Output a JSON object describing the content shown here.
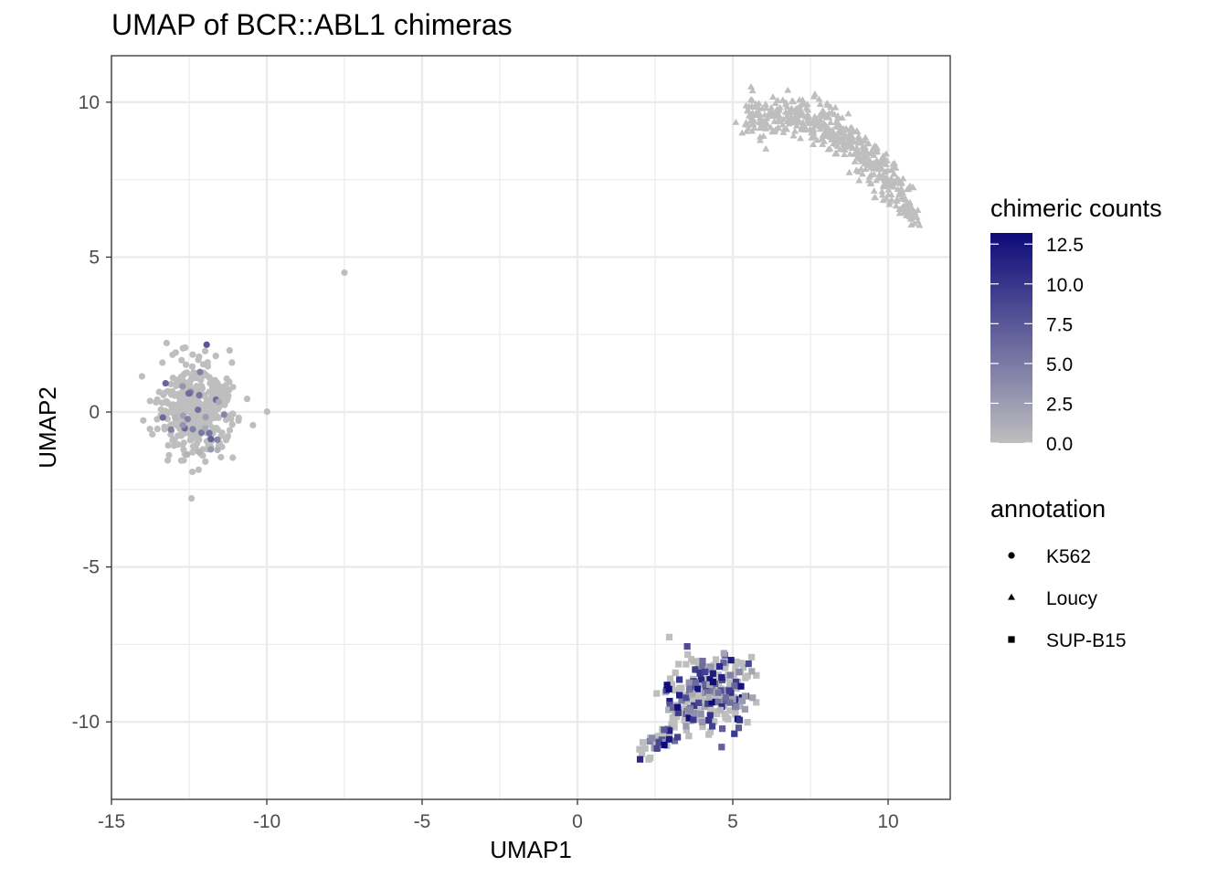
{
  "chart_data": {
    "type": "scatter",
    "title": "UMAP of BCR::ABL1 chimeras",
    "xlabel": "UMAP1",
    "ylabel": "UMAP2",
    "xlim": [
      -15,
      12
    ],
    "ylim": [
      -12.5,
      11.5
    ],
    "x_ticks": [
      -15,
      -10,
      -5,
      0,
      5,
      10
    ],
    "x_tick_labels": [
      "-15",
      "-10",
      "-5",
      "0",
      "5",
      "10"
    ],
    "y_ticks": [
      -10,
      -5,
      0,
      5,
      10
    ],
    "y_tick_labels": [
      "-10",
      "-5",
      "0",
      "5",
      "10"
    ],
    "grid": true,
    "color_scale": {
      "title": "chimeric counts",
      "min": 0,
      "max": 13.2,
      "low_color": "#bebebe",
      "high_color": "#0d0a7a",
      "ticks": [
        0.0,
        2.5,
        5.0,
        7.5,
        10.0,
        12.5
      ],
      "tick_labels": [
        "0.0",
        "2.5",
        "5.0",
        "7.5",
        "10.0",
        "12.5"
      ]
    },
    "shape_legend": {
      "title": "annotation",
      "entries": [
        {
          "label": "K562",
          "shape": "circle"
        },
        {
          "label": "Loucy",
          "shape": "triangle"
        },
        {
          "label": "SUP-B15",
          "shape": "square"
        }
      ]
    },
    "clusters": [
      {
        "annotation": "K562",
        "shape": "circle",
        "center": [
          -12.2,
          0.1
        ],
        "spread": [
          1.15,
          1.3
        ],
        "n_points": 420,
        "max_count": 8,
        "highlight_fraction": 0.06
      },
      {
        "annotation": "K562",
        "shape": "circle",
        "center": [
          -7.5,
          4.5
        ],
        "spread": [
          0.0,
          0.0
        ],
        "n_points": 1,
        "max_count": 0,
        "highlight_fraction": 0.0
      },
      {
        "annotation": "Loucy",
        "shape": "triangle",
        "center": [
          8.3,
          8.1
        ],
        "spread": [
          1.6,
          1.2
        ],
        "n_points": 520,
        "max_count": 0,
        "highlight_fraction": 0.0
      },
      {
        "annotation": "SUP-B15",
        "shape": "square",
        "center": [
          4.3,
          -9.0
        ],
        "spread": [
          1.2,
          1.1
        ],
        "n_points": 300,
        "max_count": 13.2,
        "highlight_fraction": 0.45
      }
    ]
  }
}
